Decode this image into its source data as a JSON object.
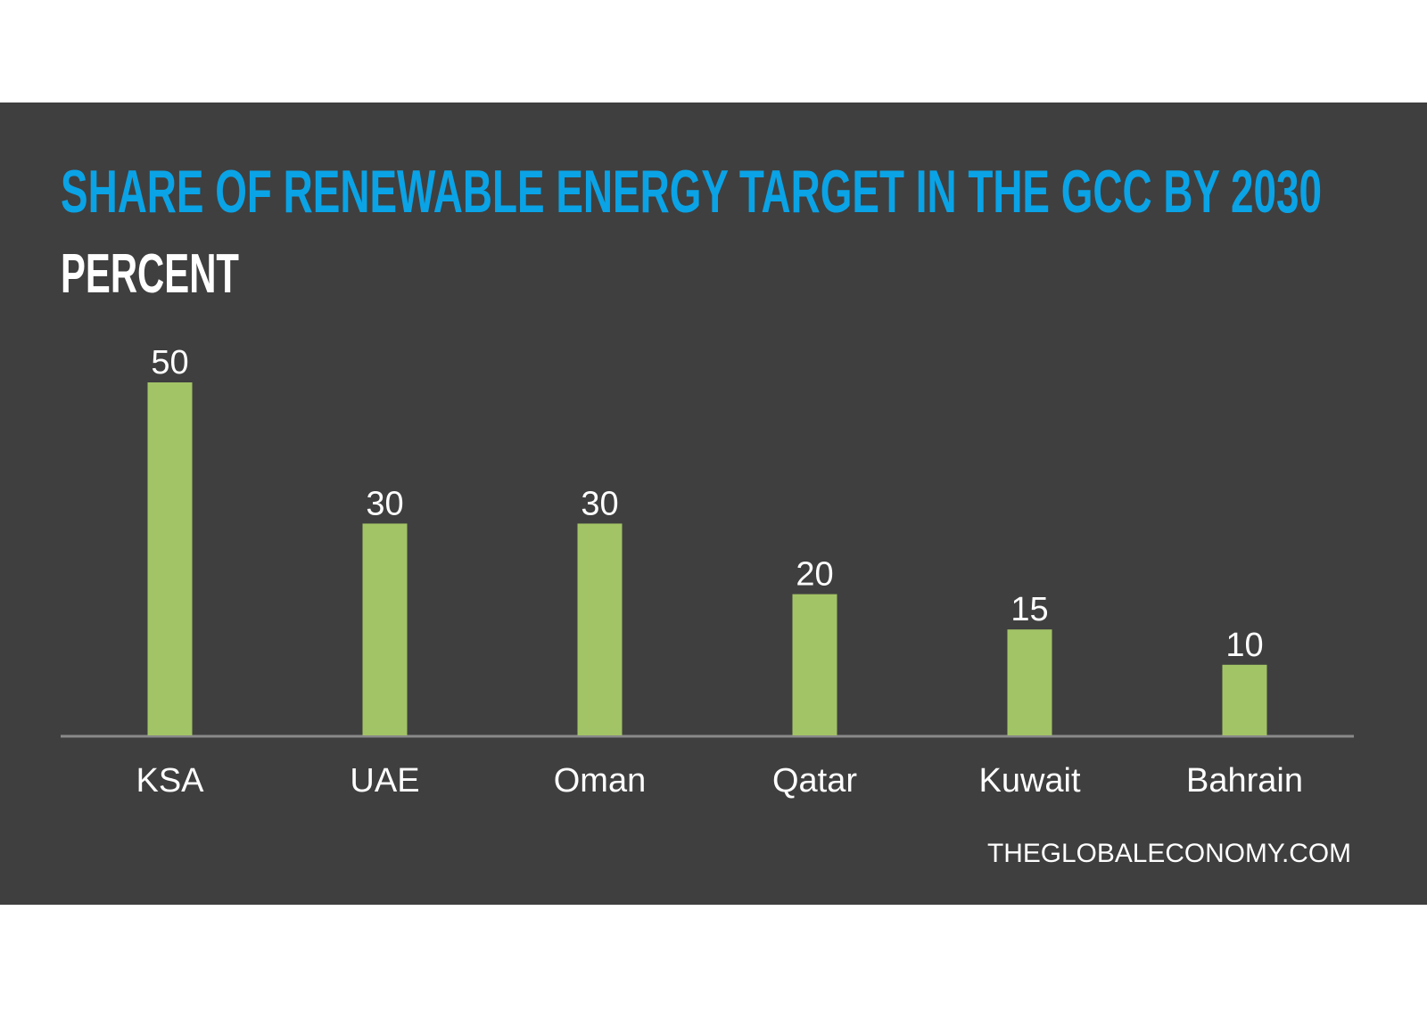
{
  "chart_data": {
    "type": "bar",
    "title": "SHARE OF RENEWABLE ENERGY TARGET IN THE GCC BY 2030",
    "subtitle": "PERCENT",
    "categories": [
      "KSA",
      "UAE",
      "Oman",
      "Qatar",
      "Kuwait",
      "Bahrain"
    ],
    "values": [
      50,
      30,
      30,
      20,
      15,
      10
    ],
    "color": "#a3c466",
    "ylim": [
      0,
      50
    ],
    "source": "THEGLOBALECONOMY.COM"
  }
}
